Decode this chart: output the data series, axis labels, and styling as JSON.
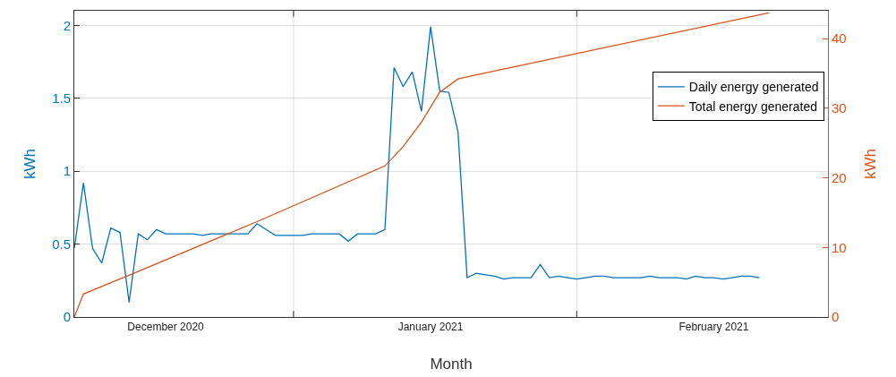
{
  "chart_data": {
    "type": "line",
    "xlabel": "Month",
    "ylabel": "kWh",
    "y2label": "kWh",
    "x": [
      "2020-12-08",
      "2020-12-09",
      "2020-12-10",
      "2020-12-11",
      "2020-12-12",
      "2020-12-13",
      "2020-12-14",
      "2020-12-15",
      "2020-12-16",
      "2020-12-17",
      "2020-12-18",
      "2020-12-19",
      "2020-12-20",
      "2020-12-21",
      "2020-12-22",
      "2020-12-23",
      "2020-12-24",
      "2020-12-25",
      "2020-12-26",
      "2020-12-27",
      "2020-12-28",
      "2020-12-29",
      "2020-12-30",
      "2020-12-31",
      "2021-01-01",
      "2021-01-02",
      "2021-01-03",
      "2021-01-04",
      "2021-01-05",
      "2021-01-06",
      "2021-01-07",
      "2021-01-08",
      "2021-01-09",
      "2021-01-10",
      "2021-01-11",
      "2021-01-12",
      "2021-01-13",
      "2021-01-14",
      "2021-01-15",
      "2021-01-16",
      "2021-01-17",
      "2021-01-18",
      "2021-01-19",
      "2021-01-20",
      "2021-01-21",
      "2021-01-22",
      "2021-01-23",
      "2021-01-24",
      "2021-01-25",
      "2021-01-26",
      "2021-01-27",
      "2021-01-28",
      "2021-01-29",
      "2021-01-30",
      "2021-01-31",
      "2021-02-01",
      "2021-02-02",
      "2021-02-03",
      "2021-02-04",
      "2021-02-05",
      "2021-02-06",
      "2021-02-07",
      "2021-02-08",
      "2021-02-09",
      "2021-02-10",
      "2021-02-11",
      "2021-02-12",
      "2021-02-13",
      "2021-02-14",
      "2021-02-15",
      "2021-02-16",
      "2021-02-17",
      "2021-02-18",
      "2021-02-19",
      "2021-02-20",
      "2021-02-21"
    ],
    "series": [
      {
        "name": "Daily energy generated",
        "color": "#0072bd",
        "values": [
          0.47,
          0.92,
          0.47,
          0.37,
          0.61,
          0.58,
          0.1,
          0.57,
          0.53,
          0.6,
          0.57,
          0.57,
          0.57,
          0.57,
          0.56,
          0.57,
          0.57,
          0.57,
          0.57,
          0.57,
          0.64,
          0.6,
          0.56,
          0.56,
          0.56,
          0.56,
          0.57,
          0.57,
          0.57,
          0.57,
          0.52,
          0.57,
          0.57,
          0.57,
          0.6,
          1.71,
          1.58,
          1.68,
          1.41,
          1.99,
          1.55,
          1.54,
          1.27,
          0.27,
          0.3,
          0.29,
          0.28,
          0.26,
          0.27,
          0.27,
          0.27,
          0.36,
          0.27,
          0.28,
          0.27,
          0.26,
          0.27,
          0.28,
          0.28,
          0.27,
          0.27,
          0.27,
          0.27,
          0.28,
          0.27,
          0.27,
          0.27,
          0.26,
          0.28,
          0.27,
          0.27,
          0.26,
          0.27,
          0.28,
          0.28,
          0.27
        ]
      },
      {
        "name": "Total energy generated",
        "color": "#d95319",
        "axis": "y2",
        "x": [
          "2020-12-08",
          "2020-12-09",
          "2020-12-11",
          "2020-12-14",
          "2020-12-28",
          "2021-01-11",
          "2021-01-13",
          "2021-01-15",
          "2021-01-17",
          "2021-01-19",
          "2021-01-21",
          "2021-02-22"
        ],
        "values": [
          0,
          3.3,
          4.4,
          6.0,
          13.7,
          21.7,
          24.5,
          28,
          32.3,
          34.2,
          34.8,
          43.7
        ]
      }
    ],
    "xlim": [
      "2020-12-08",
      "2021-02-28T12:00"
    ],
    "xticks": [
      {
        "value": "2020-12-18",
        "label": "December 2020"
      },
      {
        "value": "2021-01-01",
        "label": null
      },
      {
        "value": "2021-01-16",
        "label": "January 2021"
      },
      {
        "value": "2021-02-01",
        "label": null
      },
      {
        "value": "2021-02-16",
        "label": "February 2021"
      }
    ],
    "ylim": [
      0,
      2.1
    ],
    "yticks": [
      0,
      0.5,
      1,
      1.5,
      2
    ],
    "y2lim": [
      0,
      44
    ],
    "y2ticks": [
      0,
      10,
      20,
      30,
      40
    ],
    "grid": true,
    "legend": "right",
    "line_style": "solid",
    "marker": "none"
  }
}
